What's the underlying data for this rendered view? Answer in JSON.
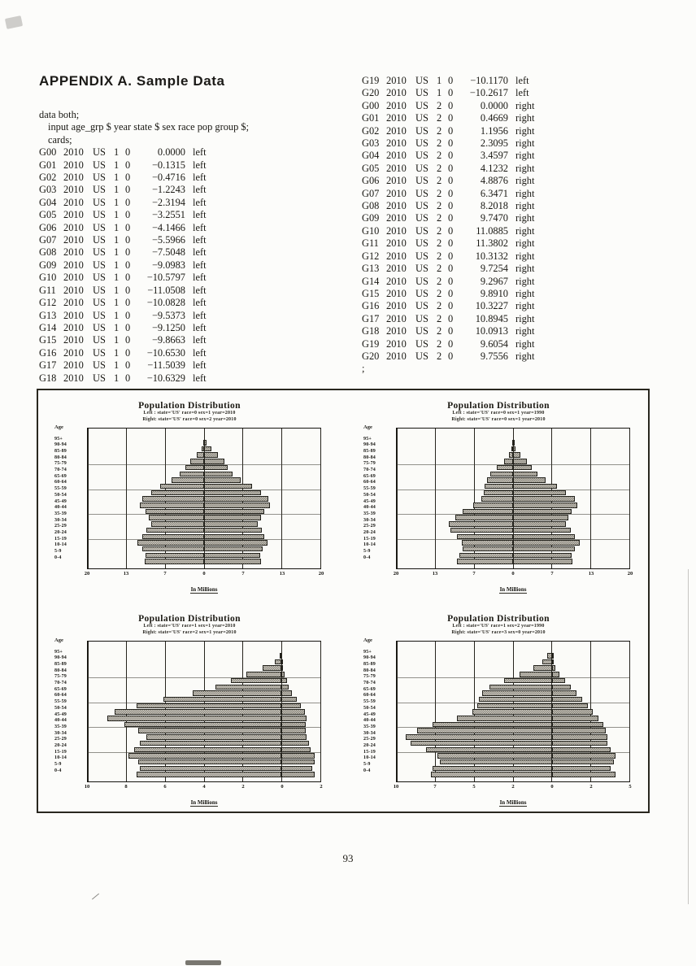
{
  "page": {
    "heading": "APPENDIX  A.  Sample Data",
    "page_number": "93"
  },
  "listing": {
    "header_lines": [
      "data both;",
      "input age_grp $ year state $ sex race pop group $;",
      "cards;"
    ],
    "terminator": ";",
    "columns": [
      "age_grp",
      "year",
      "state",
      "sex",
      "race",
      "pop",
      "group"
    ],
    "left_column_rows": [
      [
        "G00",
        "2010",
        "US",
        "1",
        "0",
        "0.0000",
        "left"
      ],
      [
        "G01",
        "2010",
        "US",
        "1",
        "0",
        "−0.1315",
        "left"
      ],
      [
        "G02",
        "2010",
        "US",
        "1",
        "0",
        "−0.4716",
        "left"
      ],
      [
        "G03",
        "2010",
        "US",
        "1",
        "0",
        "−1.2243",
        "left"
      ],
      [
        "G04",
        "2010",
        "US",
        "1",
        "0",
        "−2.3194",
        "left"
      ],
      [
        "G05",
        "2010",
        "US",
        "1",
        "0",
        "−3.2551",
        "left"
      ],
      [
        "G06",
        "2010",
        "US",
        "1",
        "0",
        "−4.1466",
        "left"
      ],
      [
        "G07",
        "2010",
        "US",
        "1",
        "0",
        "−5.5966",
        "left"
      ],
      [
        "G08",
        "2010",
        "US",
        "1",
        "0",
        "−7.5048",
        "left"
      ],
      [
        "G09",
        "2010",
        "US",
        "1",
        "0",
        "−9.0983",
        "left"
      ],
      [
        "G10",
        "2010",
        "US",
        "1",
        "0",
        "−10.5797",
        "left"
      ],
      [
        "G11",
        "2010",
        "US",
        "1",
        "0",
        "−11.0508",
        "left"
      ],
      [
        "G12",
        "2010",
        "US",
        "1",
        "0",
        "−10.0828",
        "left"
      ],
      [
        "G13",
        "2010",
        "US",
        "1",
        "0",
        "−9.5373",
        "left"
      ],
      [
        "G14",
        "2010",
        "US",
        "1",
        "0",
        "−9.1250",
        "left"
      ],
      [
        "G15",
        "2010",
        "US",
        "1",
        "0",
        "−9.8663",
        "left"
      ],
      [
        "G16",
        "2010",
        "US",
        "1",
        "0",
        "−10.6530",
        "left"
      ],
      [
        "G17",
        "2010",
        "US",
        "1",
        "0",
        "−11.5039",
        "left"
      ],
      [
        "G18",
        "2010",
        "US",
        "1",
        "0",
        "−10.6329",
        "left"
      ]
    ],
    "right_column_rows": [
      [
        "G19",
        "2010",
        "US",
        "1",
        "0",
        "−10.1170",
        "left"
      ],
      [
        "G20",
        "2010",
        "US",
        "1",
        "0",
        "−10.2617",
        "left"
      ],
      [
        "G00",
        "2010",
        "US",
        "2",
        "0",
        "0.0000",
        "right"
      ],
      [
        "G01",
        "2010",
        "US",
        "2",
        "0",
        "0.4669",
        "right"
      ],
      [
        "G02",
        "2010",
        "US",
        "2",
        "0",
        "1.1956",
        "right"
      ],
      [
        "G03",
        "2010",
        "US",
        "2",
        "0",
        "2.3095",
        "right"
      ],
      [
        "G04",
        "2010",
        "US",
        "2",
        "0",
        "3.4597",
        "right"
      ],
      [
        "G05",
        "2010",
        "US",
        "2",
        "0",
        "4.1232",
        "right"
      ],
      [
        "G06",
        "2010",
        "US",
        "2",
        "0",
        "4.8876",
        "right"
      ],
      [
        "G07",
        "2010",
        "US",
        "2",
        "0",
        "6.3471",
        "right"
      ],
      [
        "G08",
        "2010",
        "US",
        "2",
        "0",
        "8.2018",
        "right"
      ],
      [
        "G09",
        "2010",
        "US",
        "2",
        "0",
        "9.7470",
        "right"
      ],
      [
        "G10",
        "2010",
        "US",
        "2",
        "0",
        "11.0885",
        "right"
      ],
      [
        "G11",
        "2010",
        "US",
        "2",
        "0",
        "11.3802",
        "right"
      ],
      [
        "G12",
        "2010",
        "US",
        "2",
        "0",
        "10.3132",
        "right"
      ],
      [
        "G13",
        "2010",
        "US",
        "2",
        "0",
        "9.7254",
        "right"
      ],
      [
        "G14",
        "2010",
        "US",
        "2",
        "0",
        "9.2967",
        "right"
      ],
      [
        "G15",
        "2010",
        "US",
        "2",
        "0",
        "9.8910",
        "right"
      ],
      [
        "G16",
        "2010",
        "US",
        "2",
        "0",
        "10.3227",
        "right"
      ],
      [
        "G17",
        "2010",
        "US",
        "2",
        "0",
        "10.8945",
        "right"
      ],
      [
        "G18",
        "2010",
        "US",
        "2",
        "0",
        "10.0913",
        "right"
      ],
      [
        "G19",
        "2010",
        "US",
        "2",
        "0",
        "9.6054",
        "right"
      ],
      [
        "G20",
        "2010",
        "US",
        "2",
        "0",
        "9.7556",
        "right"
      ]
    ]
  },
  "chart_data": [
    {
      "type": "bar",
      "variant": "population-pyramid",
      "title": "Population Distribution",
      "subtitles": [
        "Left : state='US' race=0 sex=1 year=2010",
        "Right: state='US' race=0 sex=2 year=2010"
      ],
      "age_axis_header": "Age",
      "categories": [
        "95+",
        "90-94",
        "85-89",
        "80-84",
        "75-79",
        "70-74",
        "65-69",
        "60-64",
        "55-59",
        "50-54",
        "45-49",
        "40-44",
        "35-39",
        "30-34",
        "25-29",
        "20-24",
        "15-19",
        "10-14",
        "5-9",
        "0-4"
      ],
      "series": [
        {
          "name": "left",
          "values": [
            -0.1315,
            -0.4716,
            -1.2243,
            -2.3194,
            -3.2551,
            -4.1466,
            -5.5966,
            -7.5048,
            -9.0983,
            -10.5797,
            -11.0508,
            -10.0828,
            -9.5373,
            -9.125,
            -9.8663,
            -10.653,
            -11.5039,
            -10.6329,
            -10.117,
            -10.2617
          ]
        },
        {
          "name": "right",
          "values": [
            0.4669,
            1.1956,
            2.3095,
            3.4597,
            4.1232,
            4.8876,
            6.3471,
            8.2018,
            9.747,
            11.0885,
            11.3802,
            10.3132,
            9.7254,
            9.2967,
            9.891,
            10.3227,
            10.8945,
            10.0913,
            9.6054,
            9.7556
          ]
        }
      ],
      "xlabel": "In Millions",
      "axis": {
        "min": -20,
        "max": 20,
        "tick_values": [
          -20,
          -13.33,
          -6.67,
          0,
          6.67,
          13.33,
          20
        ],
        "tick_labels": [
          "20",
          "13",
          "7",
          "0",
          "7",
          "13",
          "20"
        ]
      }
    },
    {
      "type": "bar",
      "variant": "population-pyramid",
      "title": "Population Distribution",
      "subtitles": [
        "Left : state='US' race=0 sex=1 year=1990",
        "Right: state='US' race=0 sex=1 year=2010"
      ],
      "age_axis_header": "Age",
      "categories": [
        "95+",
        "90-94",
        "85-89",
        "80-84",
        "75-79",
        "70-74",
        "65-69",
        "60-64",
        "55-59",
        "50-54",
        "45-49",
        "40-44",
        "35-39",
        "30-34",
        "25-29",
        "20-24",
        "15-19",
        "10-14",
        "5-9",
        "0-4"
      ],
      "series": [
        {
          "name": "left",
          "values": [
            -0.1,
            -0.27,
            -0.74,
            -1.6,
            -2.8,
            -3.9,
            -4.5,
            -4.9,
            -5.1,
            -5.5,
            -6.8,
            -8.7,
            -9.9,
            -11.0,
            -10.7,
            -9.7,
            -8.8,
            -8.7,
            -9.3,
            -9.6
          ]
        },
        {
          "name": "right",
          "values": [
            0.13,
            0.47,
            1.22,
            2.32,
            3.26,
            4.15,
            5.6,
            7.5,
            9.1,
            10.58,
            11.05,
            10.08,
            9.54,
            9.13,
            9.87,
            10.65,
            11.5,
            10.63,
            10.12,
            10.26
          ]
        }
      ],
      "xlabel": "In Millions",
      "axis": {
        "min": -20,
        "max": 20,
        "tick_values": [
          -20,
          -13.33,
          -6.67,
          0,
          6.67,
          13.33,
          20
        ],
        "tick_labels": [
          "20",
          "13",
          "7",
          "0",
          "7",
          "13",
          "20"
        ]
      }
    },
    {
      "type": "bar",
      "variant": "population-pyramid",
      "title": "Population Distribution",
      "subtitles": [
        "Left : state='US' race=1 sex=1 year=2010",
        "Right: state='US' race=2 sex=1 year=2010"
      ],
      "age_axis_header": "Age",
      "categories": [
        "95+",
        "90-94",
        "85-89",
        "80-84",
        "75-79",
        "70-74",
        "65-69",
        "60-64",
        "55-59",
        "50-54",
        "45-49",
        "40-44",
        "35-39",
        "30-34",
        "25-29",
        "20-24",
        "15-19",
        "10-14",
        "5-9",
        "0-4"
      ],
      "series": [
        {
          "name": "left",
          "values": [
            -0.1,
            -0.35,
            -1.0,
            -1.8,
            -2.6,
            -3.4,
            -4.6,
            -6.1,
            -7.5,
            -8.6,
            -9.0,
            -8.1,
            -7.4,
            -7.0,
            -7.3,
            -7.6,
            -7.9,
            -7.4,
            -7.3,
            -7.5
          ]
        },
        {
          "name": "right",
          "values": [
            0.01,
            0.04,
            0.09,
            0.17,
            0.26,
            0.37,
            0.55,
            0.77,
            1.0,
            1.2,
            1.3,
            1.25,
            1.24,
            1.28,
            1.4,
            1.5,
            1.7,
            1.7,
            1.6,
            1.7
          ]
        }
      ],
      "xlabel": "In Millions",
      "axis": {
        "min": -10,
        "max": 2,
        "tick_values": [
          -10,
          -8,
          -6,
          -4,
          -2,
          0,
          2
        ],
        "tick_labels": [
          "10",
          "8",
          "6",
          "4",
          "2",
          "0",
          "2"
        ]
      }
    },
    {
      "type": "bar",
      "variant": "population-pyramid",
      "title": "Population Distribution",
      "subtitles": [
        "Left : state='US' race=1 sex=2 year=1990",
        "Right: state='US' race=3 sex=0 year=2010"
      ],
      "age_axis_header": "Age",
      "categories": [
        "95+",
        "90-94",
        "85-89",
        "80-84",
        "75-79",
        "70-74",
        "65-69",
        "60-64",
        "55-59",
        "50-54",
        "45-49",
        "40-44",
        "35-39",
        "30-34",
        "25-29",
        "20-24",
        "15-19",
        "10-14",
        "5-9",
        "0-4"
      ],
      "series": [
        {
          "name": "left",
          "values": [
            -0.3,
            -0.6,
            -1.2,
            -2.1,
            -3.1,
            -4.0,
            -4.5,
            -4.7,
            -4.8,
            -5.1,
            -6.1,
            -7.7,
            -8.7,
            -9.4,
            -9.1,
            -8.1,
            -7.4,
            -7.2,
            -7.7,
            -7.8
          ]
        },
        {
          "name": "right",
          "values": [
            0.03,
            0.1,
            0.25,
            0.5,
            0.85,
            1.2,
            1.6,
            1.95,
            2.3,
            2.65,
            3.0,
            3.3,
            3.5,
            3.6,
            3.6,
            3.8,
            4.1,
            4.0,
            3.8,
            4.1
          ]
        }
      ],
      "xlabel": "In Millions",
      "axis": {
        "min": -10,
        "max": 5,
        "tick_values": [
          -10,
          -7.5,
          -5,
          -2.5,
          0,
          2.5,
          5
        ],
        "tick_labels": [
          "10",
          "7",
          "5",
          "2",
          "0",
          "2",
          "5"
        ]
      }
    }
  ]
}
